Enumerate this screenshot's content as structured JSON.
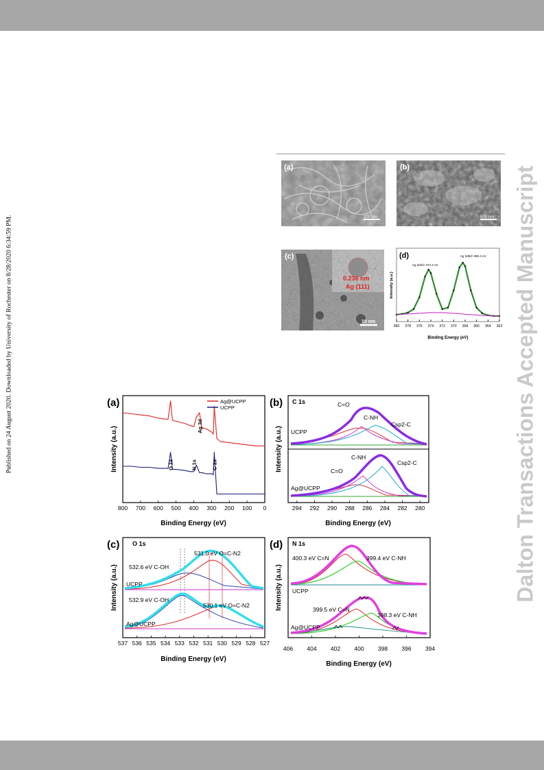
{
  "page": {
    "side_note": "Published on 24 August 2020. Downloaded by University of Rochester on 8/28/2020 6:34:59 PM.",
    "watermark": "Dalton Transactions Accepted Manuscript"
  },
  "figure1": {
    "panels": {
      "a": {
        "label": "(a)",
        "scale_bar": "100 nm"
      },
      "b": {
        "label": "(b)",
        "scale_bar": "500 nm"
      },
      "c": {
        "label": "(c)",
        "scale_bar": "10 nm",
        "inset_lattice": "0.236 nm",
        "inset_plane": "Ag (111)"
      },
      "d": {
        "label": "(d)"
      }
    }
  },
  "chart_data": [
    {
      "id": "fig1d",
      "type": "line",
      "title": "",
      "xlabel": "Binding Energy (eV)",
      "ylabel": "Intensity (a.u.)",
      "xlim": [
        380,
        362
      ],
      "xticks": [
        "380",
        "378",
        "376",
        "374",
        "372",
        "370",
        "368",
        "366",
        "364",
        "362"
      ],
      "x": [
        380,
        379,
        378,
        377,
        376,
        375,
        374.4,
        374,
        373,
        372,
        371,
        370,
        369,
        368.4,
        368,
        367,
        366,
        365,
        364,
        363,
        362
      ],
      "series": [
        {
          "name": "",
          "color": "#2e8b2e",
          "values": [
            10,
            11,
            13,
            18,
            35,
            65,
            75,
            70,
            40,
            18,
            20,
            45,
            78,
            85,
            80,
            45,
            20,
            12,
            9,
            8,
            8
          ]
        },
        {
          "name": "",
          "color": "#cc33cc",
          "values": [
            10,
            10.5,
            11,
            11.5,
            12,
            12.5,
            13,
            13,
            13,
            13,
            12.5,
            12,
            11.5,
            11,
            10.5,
            10,
            9.5,
            9,
            8.5,
            8,
            8
          ]
        }
      ],
      "annotations": [
        {
          "text": "Ag 3d3/2 374.4 eV",
          "x": 374.4
        },
        {
          "text": "Ag 3d5/2 368.4 eV",
          "x": 368.4
        }
      ]
    },
    {
      "id": "fig2a",
      "type": "line",
      "title": "",
      "panel_label": "(a)",
      "xlabel": "Binding Energy (eV)",
      "ylabel": "Intensity (a.u.)",
      "xlim": [
        800,
        0
      ],
      "xticks": [
        "800",
        "700",
        "600",
        "500",
        "400",
        "300",
        "200",
        "100",
        "0"
      ],
      "legend": {
        "placement": "top-right",
        "entries": [
          {
            "name": "Ag@UCPP",
            "color": "#e02020"
          },
          {
            "name": "UCPP",
            "color": "#1a1a80"
          }
        ]
      },
      "x": [
        800,
        750,
        700,
        650,
        600,
        560,
        545,
        531,
        520,
        500,
        450,
        420,
        400,
        385,
        368,
        355,
        330,
        300,
        290,
        285,
        270,
        250,
        200,
        150,
        100,
        50,
        0
      ],
      "series": [
        {
          "name": "Ag@UCPP",
          "color": "#e02020",
          "values": [
            84,
            83,
            82,
            81,
            79,
            78,
            78,
            95,
            77,
            76,
            74,
            72,
            71,
            80,
            84,
            70,
            69,
            66,
            64,
            90,
            60,
            57,
            56,
            55,
            54,
            53,
            53
          ]
        },
        {
          "name": "UCPP",
          "color": "#1a1a80",
          "values": [
            34,
            34,
            33,
            33,
            32,
            32,
            32,
            47,
            31,
            31,
            30,
            29,
            29,
            35,
            28,
            28,
            27,
            27,
            26,
            47,
            8,
            8,
            8,
            8,
            8,
            8,
            8
          ]
        }
      ],
      "annotations": [
        {
          "text": "Ag 3d",
          "x": 368
        },
        {
          "text": "O 1s",
          "x": 531
        },
        {
          "text": "N 1s",
          "x": 400
        },
        {
          "text": "C 1s",
          "x": 285
        }
      ]
    },
    {
      "id": "fig2b",
      "type": "line",
      "title": "",
      "panel_label": "(b)",
      "panel_title": "C 1s",
      "xlabel": "Binding Energy (eV)",
      "ylabel": "Intensity (a.u.)",
      "xlim": [
        295,
        279
      ],
      "xticks": [
        "294",
        "292",
        "290",
        "288",
        "286",
        "284",
        "282",
        "280"
      ],
      "sample_labels": [
        "UCPP",
        "Ag@UCPP"
      ],
      "annotations": [
        "C=O",
        "C-NH",
        "Csp2-C",
        "C=O",
        "C-NH",
        "Csp2-C"
      ]
    },
    {
      "id": "fig2c",
      "type": "line",
      "title": "",
      "panel_label": "(c)",
      "panel_title": "O 1s",
      "xlabel": "Binding Energy (eV)",
      "ylabel": "Intensity (a.u.)",
      "xlim": [
        537,
        527
      ],
      "xticks": [
        "537",
        "536",
        "535",
        "534",
        "533",
        "532",
        "531",
        "530",
        "529",
        "528",
        "527"
      ],
      "sample_labels": [
        "UCPP",
        "Ag@UCPP"
      ],
      "annotations": [
        "532.6 eV C-OH",
        "531.0 eV O=C-N2",
        "532.9 eV C-OH",
        "530.1 eV O=C-N2"
      ]
    },
    {
      "id": "fig2d",
      "type": "line",
      "title": "",
      "panel_label": "(d)",
      "panel_title": "N 1s",
      "xlabel": "Binding Energy (eV)",
      "ylabel": "Intensity (a.u.)",
      "xlim": [
        406,
        394
      ],
      "xticks": [
        "406",
        "404",
        "402",
        "400",
        "398",
        "396",
        "394"
      ],
      "sample_labels": [
        "UCPP",
        "Ag@UCPP"
      ],
      "annotations": [
        "400.3 eV C=N",
        "399.4 eV C-NH",
        "399.5 eV C=N",
        "398.3 eV C-NH"
      ]
    }
  ]
}
